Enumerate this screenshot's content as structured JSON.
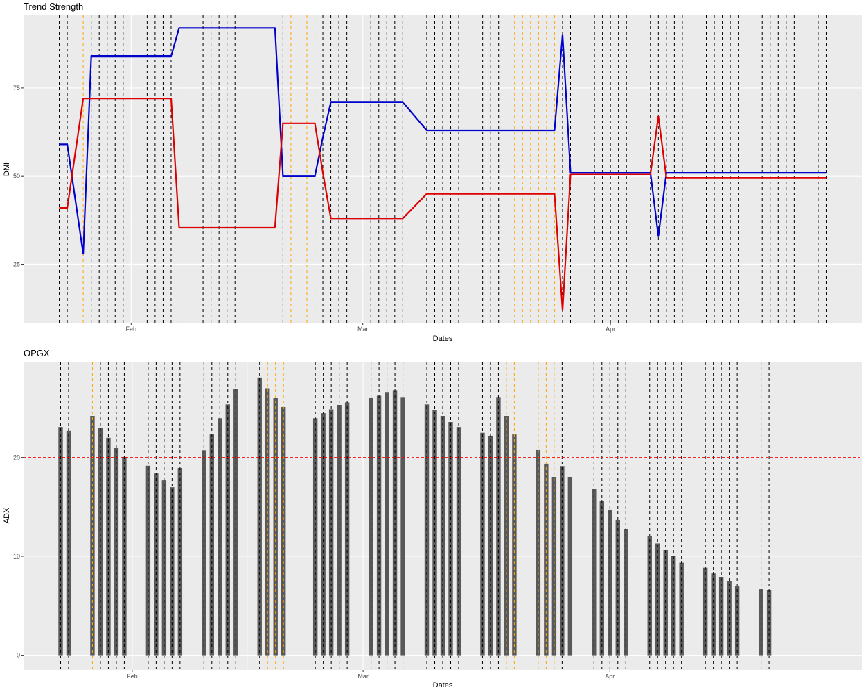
{
  "chart_data": [
    {
      "type": "line",
      "title": "Trend Strength",
      "xlabel": "Dates",
      "ylabel": "DMI",
      "ylim": [
        8.4,
        95.6
      ],
      "y_ticks": [
        25,
        50,
        75
      ],
      "x_ticks": [
        {
          "date": "2024-02-01",
          "label": "Feb"
        },
        {
          "date": "2024-03-01",
          "label": "Mar"
        },
        {
          "date": "2024-04-01",
          "label": "Apr"
        }
      ],
      "grid": true,
      "x": [
        "2024-01-23",
        "2024-01-24",
        "2024-01-26",
        "2024-01-27",
        "2024-01-28",
        "2024-01-29",
        "2024-01-30",
        "2024-01-31",
        "2024-02-03",
        "2024-02-04",
        "2024-02-05",
        "2024-02-06",
        "2024-02-07",
        "2024-02-10",
        "2024-02-11",
        "2024-02-12",
        "2024-02-13",
        "2024-02-14",
        "2024-02-17",
        "2024-02-18",
        "2024-02-19",
        "2024-02-20",
        "2024-02-21",
        "2024-02-24",
        "2024-02-25",
        "2024-02-26",
        "2024-02-27",
        "2024-02-28",
        "2024-03-02",
        "2024-03-03",
        "2024-03-04",
        "2024-03-05",
        "2024-03-06",
        "2024-03-09",
        "2024-03-10",
        "2024-03-11",
        "2024-03-12",
        "2024-03-13",
        "2024-03-16",
        "2024-03-17",
        "2024-03-18",
        "2024-03-19",
        "2024-03-20",
        "2024-03-23",
        "2024-03-24",
        "2024-03-25",
        "2024-03-26",
        "2024-03-27",
        "2024-03-30",
        "2024-03-31",
        "2024-04-01",
        "2024-04-02",
        "2024-04-03",
        "2024-04-06",
        "2024-04-07",
        "2024-04-08",
        "2024-04-09",
        "2024-04-10",
        "2024-04-13",
        "2024-04-14",
        "2024-04-15",
        "2024-04-16",
        "2024-04-17",
        "2024-04-20",
        "2024-04-21",
        "2024-04-22",
        "2024-04-23",
        "2024-04-24",
        "2024-04-27",
        "2024-04-28"
      ],
      "series": [
        {
          "color": "#0000cc",
          "values": [
            59,
            59,
            28,
            84,
            84,
            84,
            84,
            84,
            84,
            84,
            84,
            84,
            92,
            92,
            92,
            92,
            92,
            92,
            92,
            92,
            92,
            50,
            50,
            50,
            61,
            71,
            71,
            71,
            71,
            71,
            71,
            71,
            71,
            63,
            63,
            63,
            63,
            63,
            63,
            63,
            63,
            63,
            63,
            63,
            63,
            63,
            90,
            51,
            51,
            51,
            51,
            51,
            51,
            51,
            33,
            51,
            51,
            51,
            51,
            51,
            51,
            51,
            51,
            51,
            51,
            51,
            51,
            51,
            51,
            51
          ]
        },
        {
          "color": "#dd0000",
          "values": [
            41,
            41,
            72,
            72,
            72,
            72,
            72,
            72,
            72,
            72,
            72,
            72,
            35.5,
            35.5,
            35.5,
            35.5,
            35.5,
            35.5,
            35.5,
            35.5,
            35.5,
            65,
            65,
            65,
            51,
            38,
            38,
            38,
            38,
            38,
            38,
            38,
            38,
            45,
            45,
            45,
            45,
            45,
            45,
            45,
            45,
            45,
            45,
            45,
            45,
            45,
            12,
            50.5,
            50.5,
            50.5,
            50.5,
            50.5,
            50.5,
            50.5,
            67,
            49.5,
            49.5,
            49.5,
            49.5,
            49.5,
            49.5,
            49.5,
            49.5,
            49.5,
            49.5,
            49.5,
            49.5,
            49.5,
            49.5,
            49.5
          ]
        }
      ],
      "vlines": {
        "dark_color": "#000000",
        "highlight_color": "#ffa500",
        "dates": [
          "2024-01-23",
          "2024-01-24",
          "2024-01-27",
          "2024-01-28",
          "2024-01-29",
          "2024-01-30",
          "2024-01-31",
          "2024-02-03",
          "2024-02-04",
          "2024-02-05",
          "2024-02-06",
          "2024-02-07",
          "2024-02-10",
          "2024-02-11",
          "2024-02-12",
          "2024-02-13",
          "2024-02-14",
          "2024-02-20",
          "2024-02-24",
          "2024-02-25",
          "2024-02-26",
          "2024-02-27",
          "2024-02-28",
          "2024-03-02",
          "2024-03-03",
          "2024-03-04",
          "2024-03-05",
          "2024-03-06",
          "2024-03-09",
          "2024-03-10",
          "2024-03-11",
          "2024-03-12",
          "2024-03-13",
          "2024-03-16",
          "2024-03-17",
          "2024-03-18",
          "2024-03-26",
          "2024-03-27",
          "2024-03-30",
          "2024-03-31",
          "2024-04-01",
          "2024-04-02",
          "2024-04-03",
          "2024-04-06",
          "2024-04-07",
          "2024-04-08",
          "2024-04-09",
          "2024-04-10",
          "2024-04-13",
          "2024-04-14",
          "2024-04-15",
          "2024-04-16",
          "2024-04-17",
          "2024-04-20",
          "2024-04-21",
          "2024-04-22",
          "2024-04-23",
          "2024-04-24",
          "2024-04-27",
          "2024-04-28"
        ],
        "highlight_dates": [
          "2024-01-26",
          "2024-02-21",
          "2024-02-22",
          "2024-02-23",
          "2024-03-20",
          "2024-03-21",
          "2024-03-22",
          "2024-03-23",
          "2024-03-24",
          "2024-03-25"
        ]
      }
    },
    {
      "type": "bar",
      "title": "OPGX",
      "xlabel": "Dates",
      "ylabel": "ADX",
      "ylim": [
        -1.5,
        29.7
      ],
      "y_ticks": [
        0,
        10,
        20
      ],
      "x_ticks": [
        {
          "date": "2024-02-01",
          "label": "Feb"
        },
        {
          "date": "2024-03-01",
          "label": "Mar"
        },
        {
          "date": "2024-04-01",
          "label": "Apr"
        }
      ],
      "grid": true,
      "bar_color": "#595959",
      "reference_line": {
        "y": 20,
        "color": "#ff0000"
      },
      "x": [
        "2024-01-23",
        "2024-01-24",
        "2024-01-27",
        "2024-01-28",
        "2024-01-29",
        "2024-01-30",
        "2024-01-31",
        "2024-02-03",
        "2024-02-04",
        "2024-02-05",
        "2024-02-06",
        "2024-02-07",
        "2024-02-10",
        "2024-02-11",
        "2024-02-12",
        "2024-02-13",
        "2024-02-14",
        "2024-02-17",
        "2024-02-18",
        "2024-02-19",
        "2024-02-20",
        "2024-02-24",
        "2024-02-25",
        "2024-02-26",
        "2024-02-27",
        "2024-02-28",
        "2024-03-02",
        "2024-03-03",
        "2024-03-04",
        "2024-03-05",
        "2024-03-06",
        "2024-03-09",
        "2024-03-10",
        "2024-03-11",
        "2024-03-12",
        "2024-03-13",
        "2024-03-16",
        "2024-03-17",
        "2024-03-18",
        "2024-03-19",
        "2024-03-20",
        "2024-03-23",
        "2024-03-24",
        "2024-03-25",
        "2024-03-26",
        "2024-03-27",
        "2024-03-30",
        "2024-03-31",
        "2024-04-01",
        "2024-04-02",
        "2024-04-03",
        "2024-04-06",
        "2024-04-07",
        "2024-04-08",
        "2024-04-09",
        "2024-04-10",
        "2024-04-13",
        "2024-04-14",
        "2024-04-15",
        "2024-04-16",
        "2024-04-17",
        "2024-04-20",
        "2024-04-21"
      ],
      "values": [
        23.1,
        22.7,
        24.2,
        23.0,
        22.0,
        21.0,
        20.1,
        19.2,
        18.4,
        17.7,
        17.0,
        18.9,
        20.7,
        22.4,
        24.0,
        25.4,
        26.9,
        28.1,
        27.0,
        26.0,
        25.1,
        24.0,
        24.5,
        24.9,
        25.3,
        25.6,
        26.0,
        26.3,
        26.6,
        26.8,
        26.1,
        25.4,
        24.8,
        24.2,
        23.6,
        23.1,
        22.5,
        22.2,
        26.1,
        24.2,
        22.4,
        20.8,
        19.4,
        18.0,
        19.1,
        18.0,
        16.8,
        15.6,
        14.7,
        13.7,
        12.8,
        12.1,
        11.3,
        10.7,
        10.0,
        9.4,
        8.9,
        8.3,
        7.9,
        7.5,
        7.0,
        6.7,
        6.6
      ],
      "vlines": {
        "dark_color": "#000000",
        "highlight_color": "#ffa500",
        "dates": [
          "2024-01-23",
          "2024-01-24",
          "2024-01-28",
          "2024-01-29",
          "2024-01-30",
          "2024-01-31",
          "2024-02-03",
          "2024-02-04",
          "2024-02-05",
          "2024-02-06",
          "2024-02-07",
          "2024-02-10",
          "2024-02-11",
          "2024-02-12",
          "2024-02-13",
          "2024-02-14",
          "2024-02-17",
          "2024-02-24",
          "2024-02-25",
          "2024-02-26",
          "2024-02-27",
          "2024-02-28",
          "2024-03-02",
          "2024-03-03",
          "2024-03-04",
          "2024-03-05",
          "2024-03-06",
          "2024-03-09",
          "2024-03-10",
          "2024-03-11",
          "2024-03-12",
          "2024-03-13",
          "2024-03-16",
          "2024-03-17",
          "2024-03-18",
          "2024-03-26",
          "2024-03-30",
          "2024-03-31",
          "2024-04-01",
          "2024-04-02",
          "2024-04-03",
          "2024-04-06",
          "2024-04-07",
          "2024-04-08",
          "2024-04-09",
          "2024-04-10",
          "2024-04-13",
          "2024-04-14",
          "2024-04-15",
          "2024-04-16",
          "2024-04-17",
          "2024-04-20",
          "2024-04-21"
        ],
        "highlight_dates": [
          "2024-01-27",
          "2024-02-18",
          "2024-02-19",
          "2024-02-20",
          "2024-03-19",
          "2024-03-20",
          "2024-03-23",
          "2024-03-24",
          "2024-03-25"
        ]
      }
    }
  ]
}
